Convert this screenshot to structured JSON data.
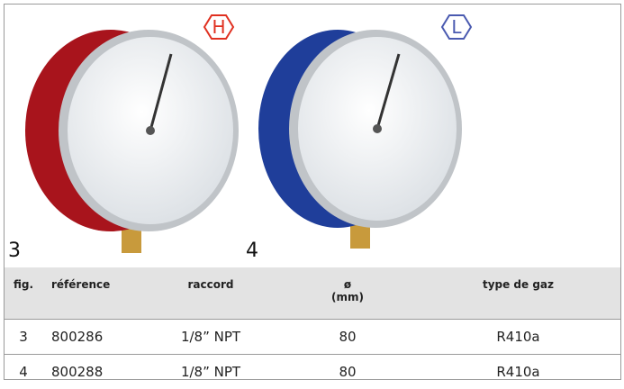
{
  "figures": [
    {
      "label": "3",
      "badge": "H"
    },
    {
      "label": "4",
      "badge": "L"
    }
  ],
  "table": {
    "header": [
      "fig.",
      "référence",
      "raccord",
      {
        "symbol": "ø",
        "unit": "(mm)"
      },
      "type de gaz"
    ],
    "rows": [
      [
        "3",
        "800286",
        "1/8” NPT",
        "80",
        "R410a"
      ],
      [
        "4",
        "800288",
        "1/8” NPT",
        "80",
        "R410a"
      ]
    ]
  }
}
